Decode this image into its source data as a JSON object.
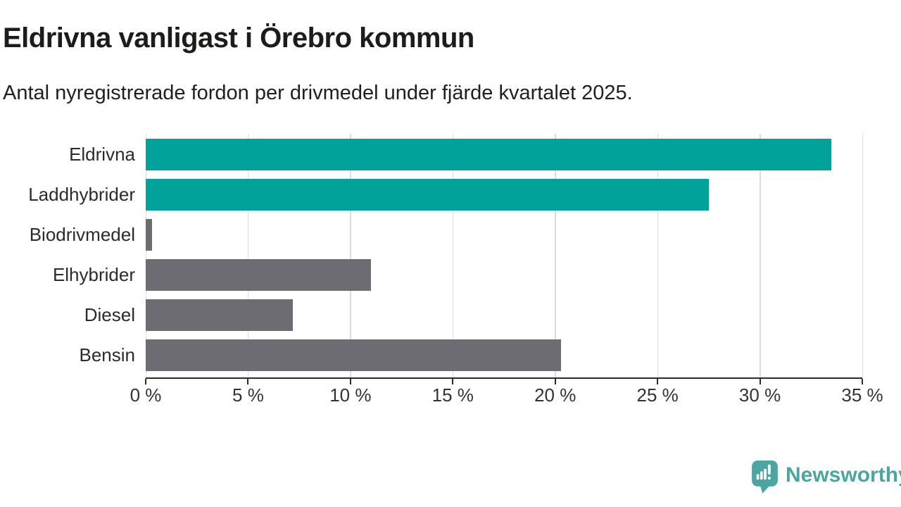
{
  "title": "Eldrivna vanligast i Örebro kommun",
  "subtitle": "Antal nyregistrerade fordon per drivmedel under fjärde kvartalet 2025.",
  "footer": {
    "brand": "Newsworthy"
  },
  "colors": {
    "highlight_teal": "#00a29a",
    "neutral_gray": "#6d6c72",
    "gridline": "#dcdcdc",
    "axis": "#2b2b2b",
    "label_text": "#2b2b2b",
    "tick_text": "#333333",
    "logo_teal": "#4ba5a0"
  },
  "chart_data": {
    "type": "bar",
    "orientation": "horizontal",
    "title": "Eldrivna vanligast i Örebro kommun",
    "subtitle": "Antal nyregistrerade fordon per drivmedel under fjärde kvartalet 2025.",
    "categories": [
      "Eldrivna",
      "Laddhybrider",
      "Biodrivmedel",
      "Elhybrider",
      "Diesel",
      "Bensin"
    ],
    "values": [
      33.5,
      27.5,
      0.3,
      11.0,
      7.2,
      20.3
    ],
    "bar_colors": [
      "#00a29a",
      "#00a29a",
      "#6d6c72",
      "#6d6c72",
      "#6d6c72",
      "#6d6c72"
    ],
    "xlabel": "",
    "ylabel": "",
    "xlim": [
      0,
      35
    ],
    "x_ticks": [
      0,
      5,
      10,
      15,
      20,
      25,
      30,
      35
    ],
    "x_tick_labels": [
      "0 %",
      "5 %",
      "10 %",
      "15 %",
      "20 %",
      "25 %",
      "30 %",
      "35 %"
    ],
    "grid": true,
    "legend": false,
    "unit": "%"
  }
}
